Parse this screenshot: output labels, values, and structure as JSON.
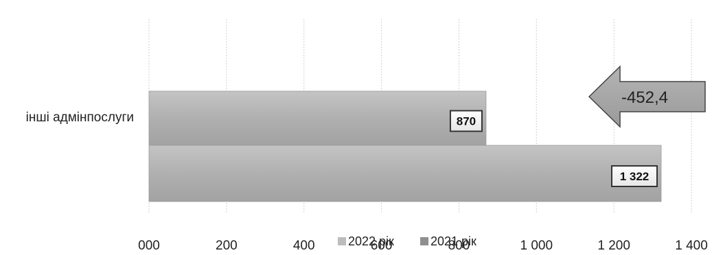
{
  "chart_data": {
    "type": "bar",
    "orientation": "horizontal",
    "categories": [
      "інші адмінпослуги"
    ],
    "series": [
      {
        "name": "2022 рік",
        "values": [
          870
        ],
        "labels": [
          "870"
        ],
        "color": "#b8b8b8"
      },
      {
        "name": "2021 рік",
        "values": [
          1322
        ],
        "labels": [
          "1 322"
        ],
        "color": "#a6a6a6"
      }
    ],
    "xlim": [
      0,
      1400
    ],
    "ticks": [
      {
        "value": 0,
        "label": "000"
      },
      {
        "value": 200,
        "label": "200"
      },
      {
        "value": 400,
        "label": "400"
      },
      {
        "value": 600,
        "label": "600"
      },
      {
        "value": 800,
        "label": "800"
      },
      {
        "value": 1000,
        "label": "1 000"
      },
      {
        "value": 1200,
        "label": "1 200"
      },
      {
        "value": 1400,
        "label": "1 400"
      }
    ],
    "grid": true,
    "legend_position": "bottom",
    "annotation": {
      "text": "-452,4",
      "shape": "left-arrow"
    }
  }
}
